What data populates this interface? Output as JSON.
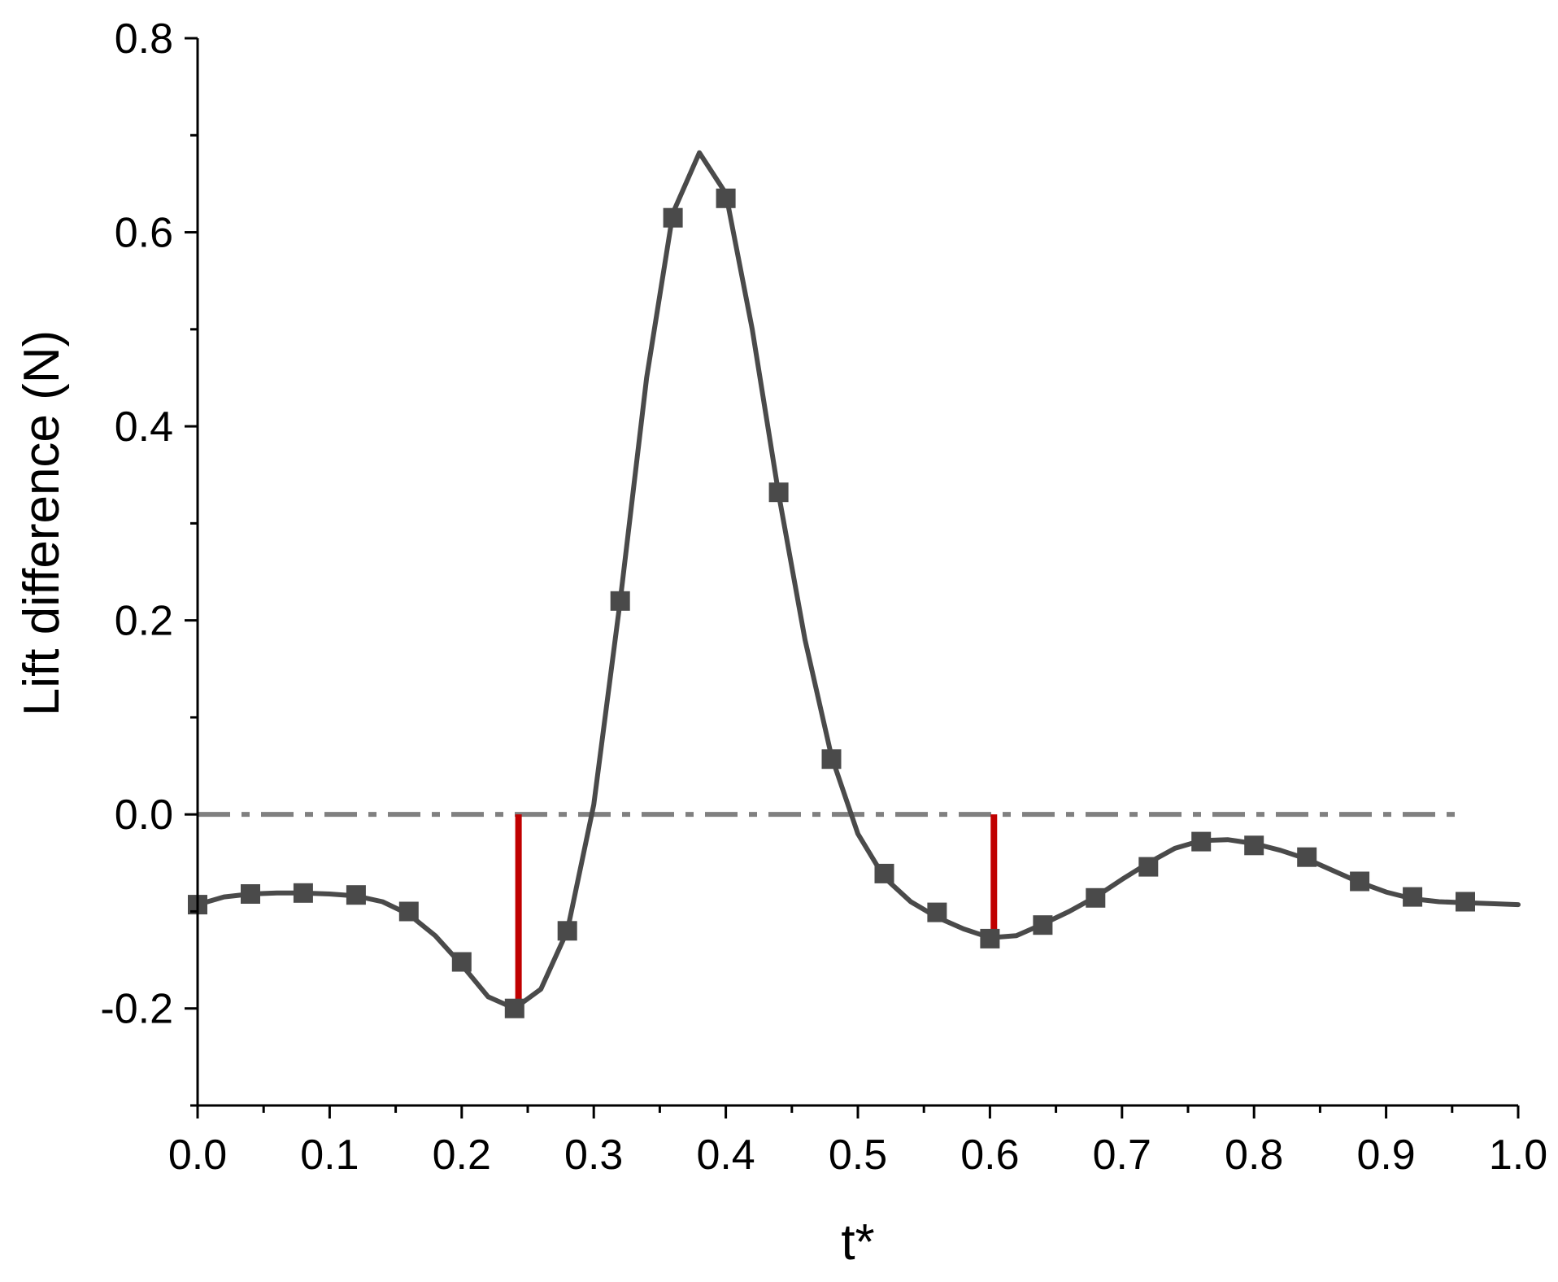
{
  "chart_data": {
    "type": "line",
    "title": "",
    "xlabel": "t*",
    "ylabel": "Lift difference (N)",
    "xlim": [
      0.0,
      1.0
    ],
    "ylim": [
      -0.3,
      0.8
    ],
    "grid": false,
    "xticks": [
      "0.0",
      "0.1",
      "0.2",
      "0.3",
      "0.4",
      "0.5",
      "0.6",
      "0.7",
      "0.8",
      "0.9",
      "1.0"
    ],
    "yticks": [
      "-0.2",
      "0.0",
      "0.2",
      "0.4",
      "0.6",
      "0.8"
    ],
    "series": [
      {
        "line_color": "#4a4a4a",
        "marker": "square",
        "curve": {
          "x": [
            0.0,
            0.02,
            0.04,
            0.06,
            0.08,
            0.1,
            0.12,
            0.14,
            0.16,
            0.18,
            0.2,
            0.22,
            0.24,
            0.26,
            0.28,
            0.3,
            0.32,
            0.34,
            0.36,
            0.38,
            0.4,
            0.42,
            0.44,
            0.46,
            0.48,
            0.5,
            0.52,
            0.54,
            0.56,
            0.58,
            0.6,
            0.62,
            0.64,
            0.66,
            0.68,
            0.7,
            0.72,
            0.74,
            0.76,
            0.78,
            0.8,
            0.82,
            0.84,
            0.86,
            0.88,
            0.9,
            0.92,
            0.94,
            0.96,
            0.98,
            1.0
          ],
          "y": [
            -0.093,
            -0.085,
            -0.082,
            -0.081,
            -0.081,
            -0.082,
            -0.084,
            -0.09,
            -0.103,
            -0.125,
            -0.155,
            -0.188,
            -0.2,
            -0.18,
            -0.12,
            0.01,
            0.22,
            0.45,
            0.62,
            0.682,
            0.64,
            0.5,
            0.33,
            0.18,
            0.06,
            -0.02,
            -0.065,
            -0.09,
            -0.106,
            -0.118,
            -0.127,
            -0.125,
            -0.113,
            -0.1,
            -0.085,
            -0.067,
            -0.05,
            -0.035,
            -0.027,
            -0.026,
            -0.03,
            -0.037,
            -0.046,
            -0.058,
            -0.07,
            -0.08,
            -0.087,
            -0.09,
            -0.091,
            -0.092,
            -0.093
          ]
        },
        "points": {
          "x": [
            0.0,
            0.04,
            0.08,
            0.12,
            0.16,
            0.2,
            0.24,
            0.28,
            0.32,
            0.36,
            0.4,
            0.44,
            0.48,
            0.52,
            0.56,
            0.6,
            0.64,
            0.68,
            0.72,
            0.76,
            0.8,
            0.84,
            0.88,
            0.92,
            0.96
          ],
          "y": [
            -0.093,
            -0.082,
            -0.081,
            -0.083,
            -0.1,
            -0.152,
            -0.2,
            -0.12,
            0.22,
            0.615,
            0.635,
            0.332,
            0.057,
            -0.061,
            -0.101,
            -0.128,
            -0.114,
            -0.086,
            -0.054,
            -0.028,
            -0.032,
            -0.044,
            -0.069,
            -0.085,
            -0.09
          ]
        }
      }
    ],
    "reference_line": {
      "y": 0.0,
      "x_range": [
        0.0,
        0.96
      ],
      "style": "dash-dot",
      "color": "#808080"
    },
    "markers": [
      {
        "x": 0.243,
        "y_from": 0.0,
        "y_to": -0.2,
        "color": "#c00000"
      },
      {
        "x": 0.603,
        "y_from": 0.0,
        "y_to": -0.13,
        "color": "#c00000"
      }
    ]
  }
}
